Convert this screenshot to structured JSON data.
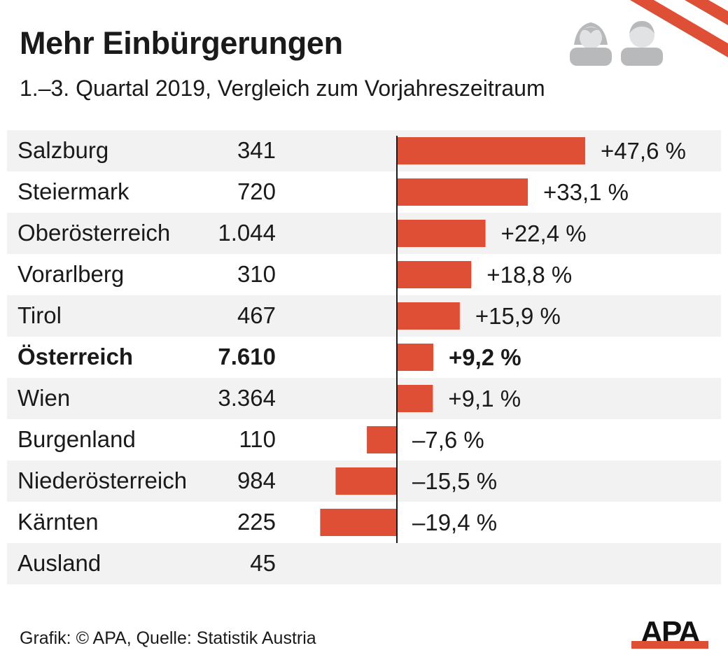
{
  "header": {
    "title": "Mehr Einbürgerungen",
    "subtitle": "1.–3. Quartal 2019, Vergleich zum Vorjahreszeitraum"
  },
  "icons": [
    "person-female-icon",
    "person-male-icon",
    "austria-flag-stripes"
  ],
  "colors": {
    "bar": "#de4f36",
    "row_alt": "#f2f2f2",
    "text": "#1a1a1a",
    "icon_gray": "#b8b9bb"
  },
  "chart_data": {
    "type": "bar",
    "orientation": "horizontal",
    "title": "Mehr Einbürgerungen",
    "subtitle": "1.–3. Quartal 2019, Vergleich zum Vorjahreszeitraum",
    "xlabel": "",
    "ylabel": "",
    "unit": "%",
    "categories": [
      "Salzburg",
      "Steiermark",
      "Oberösterreich",
      "Vorarlberg",
      "Tirol",
      "Österreich",
      "Wien",
      "Burgenland",
      "Niederösterreich",
      "Kärnten",
      "Ausland"
    ],
    "counts": [
      "341",
      "720",
      "1.044",
      "310",
      "467",
      "7.610",
      "3.364",
      "110",
      "984",
      "225",
      "45"
    ],
    "values": [
      47.6,
      33.1,
      22.4,
      18.8,
      15.9,
      9.2,
      9.1,
      -7.6,
      -15.5,
      -19.4,
      null
    ],
    "labels": [
      "+47,6 %",
      "+33,1 %",
      "+22,4 %",
      "+18,8 %",
      "+15,9 %",
      "+9,2 %",
      "+9,1 %",
      "–7,6 %",
      "–15,5 %",
      "–19,4 %",
      ""
    ],
    "highlight": "Österreich",
    "xlim": [
      -20,
      50
    ],
    "grid": false,
    "legend": "none"
  },
  "footer": {
    "source": "Grafik: © APA, Quelle: Statistik Austria",
    "logo": "APA"
  }
}
